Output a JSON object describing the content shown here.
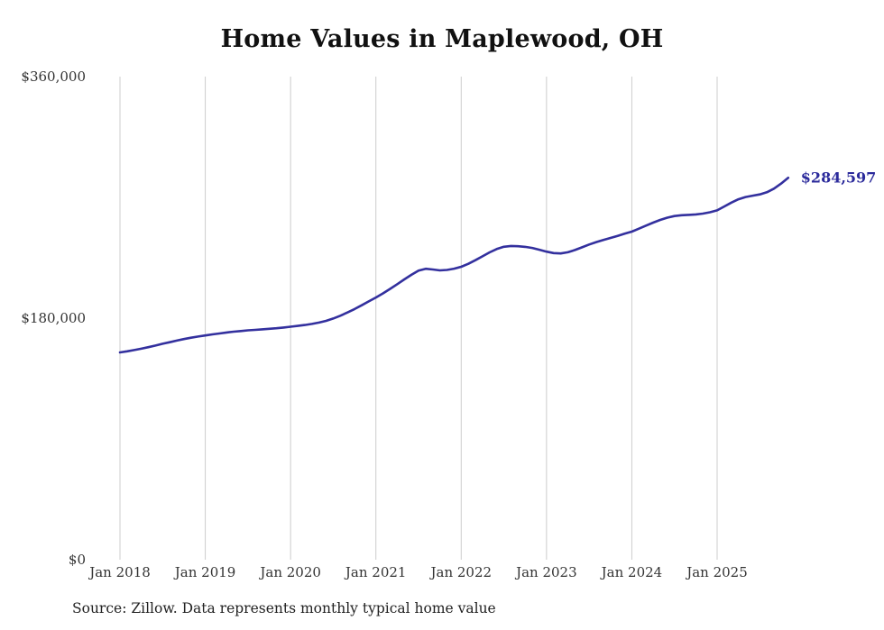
{
  "chart_data": {
    "type": "line",
    "title": "Home Values in Maplewood, OH",
    "series_name": "Monthly typical home value",
    "x_start_label": "Jan 2018",
    "x_end_label": "Nov 2025",
    "x_tick_labels": [
      "Jan 2018",
      "Jan 2019",
      "Jan 2020",
      "Jan 2021",
      "Jan 2022",
      "Jan 2023",
      "Jan 2024",
      "Jan 2025"
    ],
    "y_ticks": [
      0,
      180000,
      360000
    ],
    "y_tick_labels": [
      "$0",
      "$180,000",
      "$360,000"
    ],
    "ylim": [
      0,
      360000
    ],
    "grid": "vertical-only",
    "legend": "none",
    "values": [
      154500,
      155300,
      156200,
      157200,
      158400,
      159600,
      160900,
      162100,
      163300,
      164400,
      165400,
      166300,
      167100,
      167900,
      168600,
      169300,
      169900,
      170400,
      170900,
      171300,
      171700,
      172100,
      172500,
      173000,
      173600,
      174200,
      174900,
      175700,
      176700,
      178000,
      179700,
      181800,
      184200,
      186800,
      189600,
      192500,
      195400,
      198500,
      201800,
      205300,
      208900,
      212300,
      215400,
      216800,
      216300,
      215600,
      215900,
      216900,
      218300,
      220500,
      223200,
      226100,
      229000,
      231500,
      233200,
      233800,
      233600,
      233100,
      232300,
      231000,
      229600,
      228500,
      228200,
      229100,
      230800,
      232800,
      234900,
      236700,
      238300,
      239800,
      241300,
      242900,
      244500,
      246700,
      249000,
      251200,
      253200,
      254900,
      256100,
      256700,
      257000,
      257300,
      257900,
      258900,
      260300,
      263200,
      266100,
      268600,
      270300,
      271300,
      272200,
      273800,
      276500,
      280300,
      284597
    ],
    "end_value": 284597,
    "end_label": "$284,597",
    "line_color": "#33309e",
    "end_label_color": "#2b2a9b",
    "gridline_color": "#cccccc"
  },
  "source": "Source: Zillow. Data represents monthly typical home value"
}
